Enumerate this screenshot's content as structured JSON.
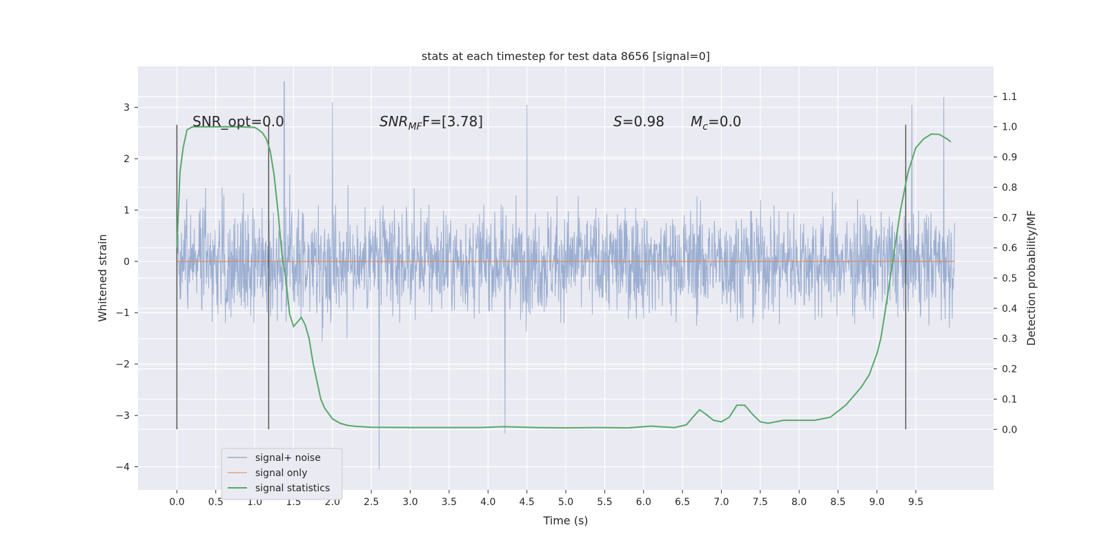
{
  "chart_data": {
    "type": "line",
    "title": "stats at each timestep for test data 8656 [signal=0]",
    "xlabel": "Time (s)",
    "ylabel_left": "Whitened strain",
    "ylabel_right": "Detection probability/MF",
    "xlim": [
      -0.5,
      10.5
    ],
    "ylim_left": [
      -4.45,
      3.8
    ],
    "ylim_right": [
      -0.2,
      1.2
    ],
    "x_ticks": [
      "0.0",
      "0.5",
      "1.0",
      "1.5",
      "2.0",
      "2.5",
      "3.0",
      "3.5",
      "4.0",
      "4.5",
      "5.0",
      "5.5",
      "6.0",
      "6.5",
      "7.0",
      "7.5",
      "8.0",
      "8.5",
      "9.0",
      "9.5"
    ],
    "y_ticks_left": [
      "3",
      "2",
      "1",
      "0",
      "−1",
      "−2",
      "−3",
      "−4"
    ],
    "y_ticks_right": [
      "1.1",
      "1.0",
      "0.9",
      "0.8",
      "0.7",
      "0.6",
      "0.5",
      "0.4",
      "0.3",
      "0.2",
      "0.1",
      "0.0"
    ],
    "grid": true,
    "legend_position": "lower-left",
    "annotations": [
      {
        "text": "SNR_opt=0.0",
        "x": 0.2
      },
      {
        "text_main": "SNR",
        "text_sub": "MF",
        "text_rest": "F=[3.78]",
        "x": 2.6
      },
      {
        "text_main": "S",
        "text_rest": "=0.98",
        "x": 5.6
      },
      {
        "text_main": "M",
        "text_sub": "c",
        "text_rest": "=0.0",
        "x": 6.6
      }
    ],
    "vertical_lines": [
      0.0,
      1.18,
      9.37
    ],
    "series": [
      {
        "name": "signal+ noise",
        "color": "#4c72b0",
        "axis": "left",
        "x_range": [
          0.0,
          10.0
        ],
        "envelope_typical": [
          -1.5,
          1.5
        ],
        "extremes": [
          {
            "x": 1.38,
            "y": 3.5
          },
          {
            "x": 2.6,
            "y": -4.05
          },
          {
            "x": 4.22,
            "y": -3.35
          },
          {
            "x": 9.86,
            "y": 3.2
          },
          {
            "x": 9.45,
            "y": 3.05
          },
          {
            "x": 4.5,
            "y": 3.05
          },
          {
            "x": 2.0,
            "y": 3.1
          }
        ]
      },
      {
        "name": "signal only",
        "color": "#dd8452",
        "axis": "left",
        "x": [
          0.0,
          10.0
        ],
        "y": [
          0.0,
          0.0
        ]
      },
      {
        "name": "signal statistics",
        "color": "#55a868",
        "axis": "right",
        "x": [
          0.0,
          0.04,
          0.08,
          0.13,
          0.2,
          0.3,
          0.45,
          0.6,
          0.8,
          1.0,
          1.05,
          1.1,
          1.15,
          1.2,
          1.25,
          1.3,
          1.35,
          1.4,
          1.45,
          1.5,
          1.55,
          1.6,
          1.65,
          1.7,
          1.75,
          1.8,
          1.85,
          1.9,
          2.0,
          2.1,
          2.2,
          2.3,
          2.5,
          3.0,
          3.5,
          3.9,
          4.2,
          4.6,
          5.0,
          5.4,
          5.8,
          6.0,
          6.1,
          6.2,
          6.4,
          6.55,
          6.65,
          6.72,
          6.8,
          6.9,
          7.0,
          7.1,
          7.2,
          7.3,
          7.4,
          7.5,
          7.6,
          7.8,
          8.0,
          8.2,
          8.4,
          8.6,
          8.8,
          8.9,
          9.0,
          9.05,
          9.1,
          9.2,
          9.3,
          9.4,
          9.5,
          9.6,
          9.7,
          9.8,
          9.9,
          9.95
        ],
        "y": [
          0.6,
          0.85,
          0.93,
          0.99,
          1.0,
          1.0,
          1.0,
          1.0,
          1.0,
          0.998,
          0.99,
          0.98,
          0.96,
          0.92,
          0.84,
          0.72,
          0.58,
          0.5,
          0.38,
          0.34,
          0.355,
          0.37,
          0.345,
          0.3,
          0.22,
          0.16,
          0.1,
          0.07,
          0.035,
          0.02,
          0.013,
          0.01,
          0.007,
          0.006,
          0.006,
          0.006,
          0.009,
          0.006,
          0.005,
          0.006,
          0.005,
          0.009,
          0.011,
          0.009,
          0.006,
          0.015,
          0.045,
          0.065,
          0.05,
          0.03,
          0.025,
          0.04,
          0.08,
          0.08,
          0.05,
          0.025,
          0.02,
          0.03,
          0.03,
          0.03,
          0.04,
          0.08,
          0.14,
          0.18,
          0.25,
          0.3,
          0.38,
          0.55,
          0.72,
          0.85,
          0.93,
          0.96,
          0.976,
          0.975,
          0.96,
          0.95
        ]
      }
    ]
  }
}
